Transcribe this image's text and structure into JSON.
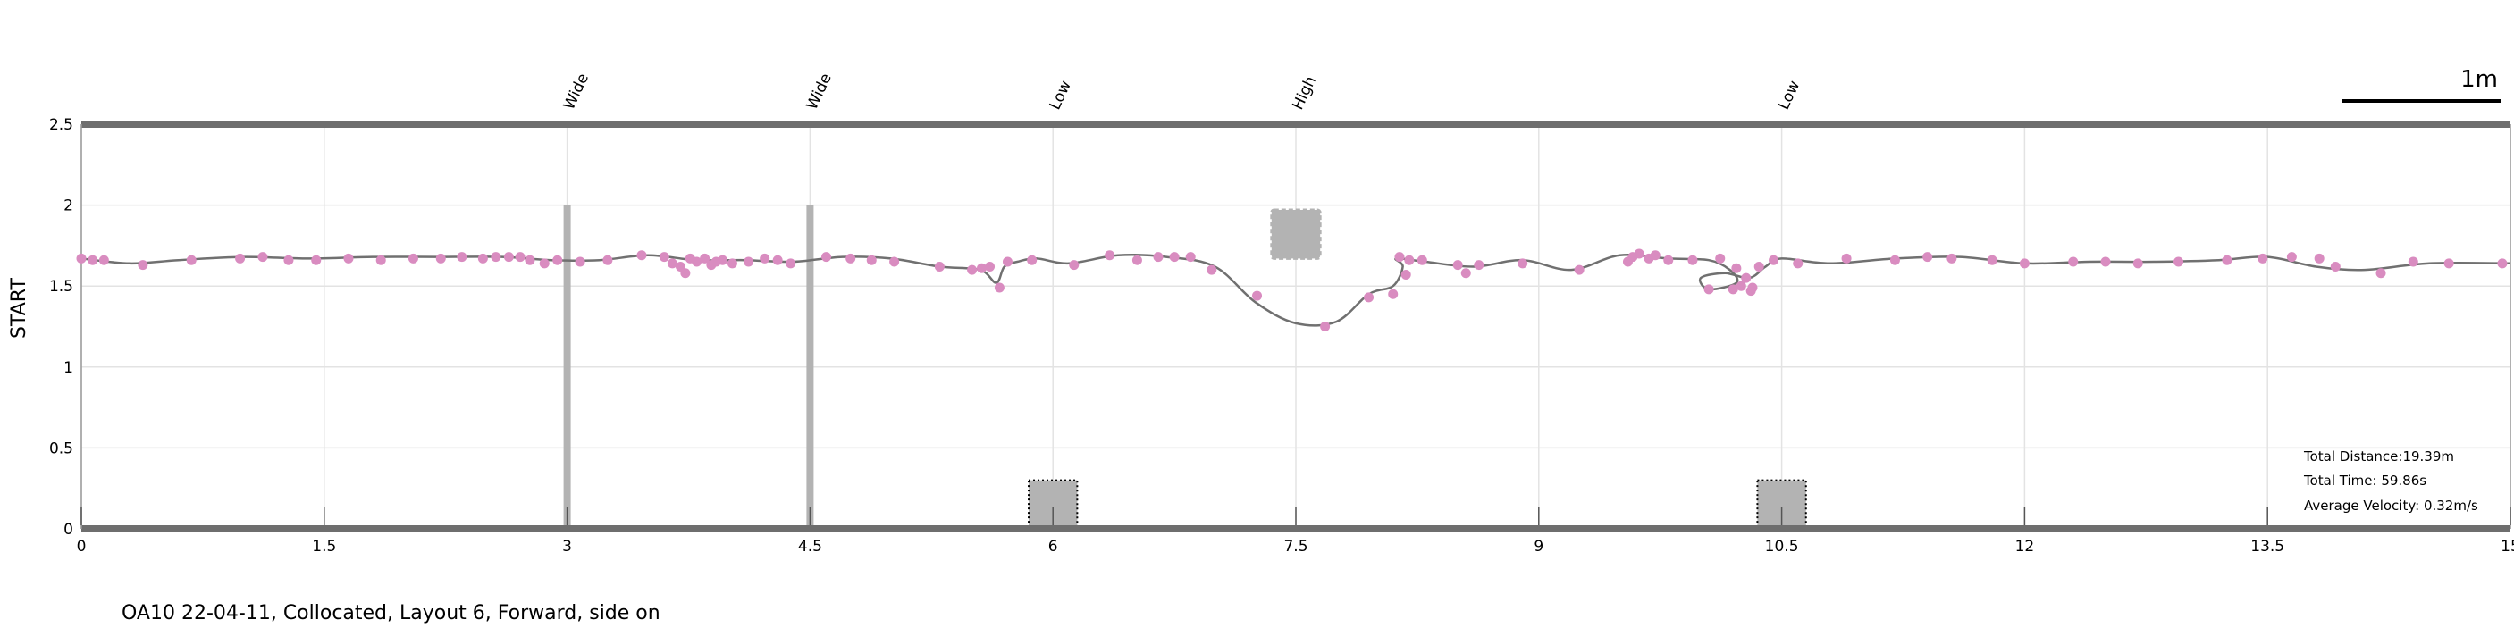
{
  "caption": "OA10 22-04-11, Collocated, Layout 6, Forward, side on",
  "scale_bar": {
    "label": "1m",
    "length": 1
  },
  "stats": [
    "Total Distance:19.39m",
    "Total Time: 59.86s",
    "Average Velocity: 0.32m/s"
  ],
  "chart_data": {
    "type": "line",
    "title": "",
    "xlabel": "",
    "ylabel": "START",
    "xlim": [
      0,
      15
    ],
    "ylim": [
      0,
      2.5
    ],
    "grid": true,
    "xticks": [
      0,
      1.5,
      3,
      4.5,
      6,
      7.5,
      9,
      10.5,
      12,
      13.5,
      15
    ],
    "xtick_labels": [
      "0",
      "1.5",
      "3",
      "4.5",
      "6",
      "7.5",
      "9",
      "10.5",
      "12",
      "13.5",
      "15"
    ],
    "yticks": [
      0,
      0.5,
      1,
      1.5,
      2,
      2.5
    ],
    "ytick_labels": [
      "0",
      "0.5",
      "1",
      "1.5",
      "2",
      "2.5"
    ],
    "colors": {
      "path": "#707070",
      "points": "#d98cc0",
      "obstacle": "#b3b3b3",
      "frame": "#6e6e6e",
      "grid": "#e3e3e3"
    },
    "annotations": [
      {
        "x": 3,
        "label": "Wide"
      },
      {
        "x": 4.5,
        "label": "Wide"
      },
      {
        "x": 6,
        "label": "Low"
      },
      {
        "x": 7.5,
        "label": "High"
      },
      {
        "x": 10.5,
        "label": "Low"
      }
    ],
    "obstacles": [
      {
        "type": "post",
        "x": 3,
        "y0": 0,
        "y1": 2
      },
      {
        "type": "post",
        "x": 4.5,
        "y0": 0,
        "y1": 2
      },
      {
        "type": "low",
        "x0": 5.85,
        "x1": 6.15,
        "y0": 0,
        "y1": 0.3
      },
      {
        "type": "high",
        "x0": 7.35,
        "x1": 7.65,
        "y0": 1.67,
        "y1": 1.97
      },
      {
        "type": "low",
        "x0": 10.35,
        "x1": 10.65,
        "y0": 0,
        "y1": 0.3
      }
    ],
    "path": {
      "x": [
        0,
        0.3,
        0.6,
        1.0,
        1.4,
        1.8,
        2.2,
        2.6,
        2.9,
        3.2,
        3.5,
        3.8,
        4.1,
        4.4,
        4.7,
        5.0,
        5.3,
        5.55,
        5.65,
        5.7,
        5.78,
        5.9,
        6.1,
        6.4,
        6.7,
        7.0,
        7.25,
        7.5,
        7.75,
        7.95,
        8.1,
        8.16,
        8.12,
        8.3,
        8.6,
        8.9,
        9.2,
        9.5,
        9.8,
        10.05,
        10.18,
        10.22,
        10.05,
        10.0,
        10.15,
        10.3,
        10.4,
        10.5,
        10.8,
        11.2,
        11.6,
        12.0,
        12.4,
        12.8,
        13.2,
        13.5,
        13.8,
        14.1,
        14.5,
        15.0
      ],
      "y": [
        1.67,
        1.64,
        1.66,
        1.68,
        1.67,
        1.68,
        1.68,
        1.68,
        1.66,
        1.66,
        1.69,
        1.66,
        1.66,
        1.65,
        1.68,
        1.67,
        1.62,
        1.6,
        1.52,
        1.62,
        1.65,
        1.67,
        1.64,
        1.69,
        1.68,
        1.62,
        1.4,
        1.27,
        1.28,
        1.45,
        1.5,
        1.62,
        1.67,
        1.65,
        1.62,
        1.66,
        1.6,
        1.69,
        1.67,
        1.66,
        1.6,
        1.52,
        1.48,
        1.55,
        1.58,
        1.55,
        1.62,
        1.67,
        1.64,
        1.67,
        1.68,
        1.64,
        1.65,
        1.65,
        1.66,
        1.68,
        1.62,
        1.6,
        1.64,
        1.64
      ]
    },
    "points": {
      "x": [
        0.0,
        0.07,
        0.14,
        0.38,
        0.68,
        0.98,
        1.12,
        1.28,
        1.45,
        1.65,
        1.85,
        2.05,
        2.22,
        2.35,
        2.48,
        2.56,
        2.64,
        2.71,
        2.77,
        2.86,
        2.94,
        3.08,
        3.25,
        3.46,
        3.6,
        3.65,
        3.7,
        3.73,
        3.76,
        3.8,
        3.85,
        3.89,
        3.92,
        3.96,
        4.02,
        4.12,
        4.22,
        4.3,
        4.38,
        4.6,
        4.75,
        4.88,
        5.02,
        5.3,
        5.5,
        5.56,
        5.61,
        5.67,
        5.72,
        5.87,
        6.13,
        6.35,
        6.52,
        6.65,
        6.75,
        6.85,
        6.98,
        7.26,
        7.68,
        7.95,
        8.1,
        8.14,
        8.2,
        8.18,
        8.28,
        8.5,
        8.55,
        8.63,
        8.9,
        9.25,
        9.55,
        9.58,
        9.62,
        9.68,
        9.72,
        9.8,
        9.95,
        10.12,
        10.22,
        10.28,
        10.36,
        10.31,
        10.05,
        10.2,
        10.25,
        10.32,
        10.45,
        10.6,
        10.9,
        11.2,
        11.4,
        11.55,
        11.8,
        12.0,
        12.3,
        12.5,
        12.7,
        12.95,
        13.25,
        13.47,
        13.65,
        13.82,
        13.92,
        14.2,
        14.4,
        14.62,
        14.95
      ],
      "y": [
        1.67,
        1.66,
        1.66,
        1.63,
        1.66,
        1.67,
        1.68,
        1.66,
        1.66,
        1.67,
        1.66,
        1.67,
        1.67,
        1.68,
        1.67,
        1.68,
        1.68,
        1.68,
        1.66,
        1.64,
        1.66,
        1.65,
        1.66,
        1.69,
        1.68,
        1.64,
        1.62,
        1.58,
        1.67,
        1.65,
        1.67,
        1.63,
        1.65,
        1.66,
        1.64,
        1.65,
        1.67,
        1.66,
        1.64,
        1.68,
        1.67,
        1.66,
        1.65,
        1.62,
        1.6,
        1.61,
        1.62,
        1.49,
        1.65,
        1.66,
        1.63,
        1.69,
        1.66,
        1.68,
        1.68,
        1.68,
        1.6,
        1.44,
        1.25,
        1.43,
        1.45,
        1.68,
        1.66,
        1.57,
        1.66,
        1.63,
        1.58,
        1.63,
        1.64,
        1.6,
        1.65,
        1.68,
        1.7,
        1.67,
        1.69,
        1.66,
        1.66,
        1.67,
        1.61,
        1.55,
        1.62,
        1.47,
        1.48,
        1.48,
        1.5,
        1.49,
        1.66,
        1.64,
        1.67,
        1.66,
        1.68,
        1.67,
        1.66,
        1.64,
        1.65,
        1.65,
        1.64,
        1.65,
        1.66,
        1.67,
        1.68,
        1.67,
        1.62,
        1.58,
        1.65,
        1.64,
        1.64
      ]
    }
  }
}
